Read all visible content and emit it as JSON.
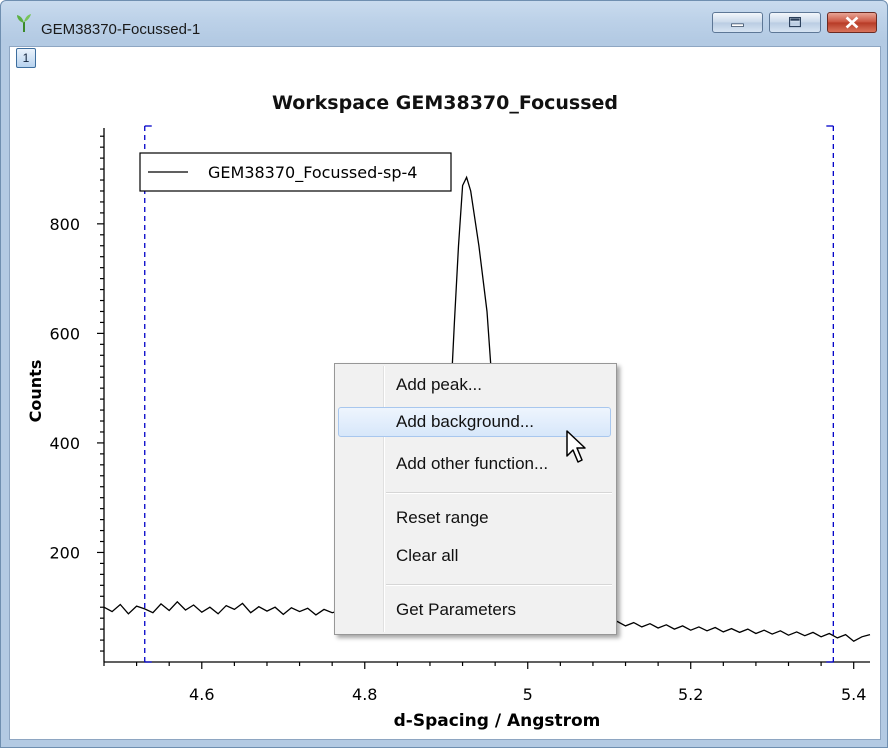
{
  "window": {
    "title": "GEM38370-Focussed-1",
    "layer_badge": "1"
  },
  "chart_title": "Workspace GEM38370_Focussed",
  "colors": {
    "range_marker": "#0000c8",
    "curve": "#000000",
    "title_bar": "#bcd1e8",
    "close_button": "#c9503c"
  },
  "context_menu": {
    "items": [
      {
        "label": "Add peak..."
      },
      {
        "label": "Add background..."
      },
      {
        "label": "Add other function..."
      },
      {
        "label": "Reset range"
      },
      {
        "label": "Clear all"
      },
      {
        "label": "Get Parameters"
      }
    ],
    "hovered": "Add background..."
  },
  "chart_data": {
    "type": "line",
    "title": "Workspace GEM38370_Focussed",
    "xlabel": "d-Spacing / Angstrom",
    "ylabel": "Counts",
    "xlim": [
      4.48,
      5.42
    ],
    "ylim": [
      0,
      975
    ],
    "x_ticks": [
      "4.6",
      "4.8",
      "5",
      "5.2",
      "5.4"
    ],
    "y_ticks": [
      "200",
      "400",
      "600",
      "800"
    ],
    "x_tick_values": [
      4.6,
      4.8,
      5.0,
      5.2,
      5.4
    ],
    "y_tick_values": [
      200,
      400,
      600,
      800
    ],
    "legend": {
      "entries": [
        "GEM38370_Focussed-sp-4"
      ],
      "placement": "top-left"
    },
    "grid": false,
    "range_markers": [
      4.53,
      5.375
    ],
    "series": [
      {
        "name": "GEM38370_Focussed-sp-4",
        "points": [
          [
            4.48,
            100
          ],
          [
            4.49,
            92
          ],
          [
            4.5,
            105
          ],
          [
            4.51,
            88
          ],
          [
            4.52,
            102
          ],
          [
            4.53,
            97
          ],
          [
            4.54,
            90
          ],
          [
            4.55,
            106
          ],
          [
            4.56,
            94
          ],
          [
            4.57,
            110
          ],
          [
            4.58,
            95
          ],
          [
            4.59,
            104
          ],
          [
            4.6,
            91
          ],
          [
            4.61,
            100
          ],
          [
            4.62,
            88
          ],
          [
            4.63,
            103
          ],
          [
            4.64,
            96
          ],
          [
            4.65,
            107
          ],
          [
            4.66,
            90
          ],
          [
            4.67,
            101
          ],
          [
            4.68,
            93
          ],
          [
            4.69,
            100
          ],
          [
            4.7,
            87
          ],
          [
            4.71,
            99
          ],
          [
            4.72,
            92
          ],
          [
            4.73,
            98
          ],
          [
            4.74,
            86
          ],
          [
            4.75,
            96
          ],
          [
            4.76,
            90
          ],
          [
            4.77,
            94
          ],
          [
            4.78,
            85
          ],
          [
            4.79,
            93
          ],
          [
            4.8,
            88
          ],
          [
            4.81,
            95
          ],
          [
            4.82,
            86
          ],
          [
            4.83,
            92
          ],
          [
            4.84,
            84
          ],
          [
            4.85,
            91
          ],
          [
            4.86,
            87
          ],
          [
            4.87,
            96
          ],
          [
            4.88,
            110
          ],
          [
            4.89,
            160
          ],
          [
            4.9,
            320
          ],
          [
            4.91,
            620
          ],
          [
            4.915,
            760
          ],
          [
            4.92,
            870
          ],
          [
            4.925,
            885
          ],
          [
            4.93,
            860
          ],
          [
            4.94,
            760
          ],
          [
            4.95,
            640
          ],
          [
            4.96,
            430
          ],
          [
            4.97,
            250
          ],
          [
            4.98,
            140
          ],
          [
            4.99,
            100
          ],
          [
            5.0,
            84
          ],
          [
            5.01,
            80
          ],
          [
            5.02,
            78
          ],
          [
            5.03,
            82
          ],
          [
            5.04,
            75
          ],
          [
            5.05,
            80
          ],
          [
            5.06,
            72
          ],
          [
            5.07,
            78
          ],
          [
            5.08,
            70
          ],
          [
            5.09,
            76
          ],
          [
            5.1,
            69
          ],
          [
            5.11,
            74
          ],
          [
            5.12,
            66
          ],
          [
            5.13,
            72
          ],
          [
            5.14,
            64
          ],
          [
            5.15,
            70
          ],
          [
            5.16,
            62
          ],
          [
            5.17,
            68
          ],
          [
            5.18,
            60
          ],
          [
            5.19,
            66
          ],
          [
            5.2,
            58
          ],
          [
            5.21,
            64
          ],
          [
            5.22,
            57
          ],
          [
            5.23,
            63
          ],
          [
            5.24,
            55
          ],
          [
            5.25,
            61
          ],
          [
            5.26,
            54
          ],
          [
            5.27,
            60
          ],
          [
            5.28,
            52
          ],
          [
            5.29,
            58
          ],
          [
            5.3,
            51
          ],
          [
            5.31,
            57
          ],
          [
            5.32,
            49
          ],
          [
            5.33,
            55
          ],
          [
            5.34,
            48
          ],
          [
            5.35,
            54
          ],
          [
            5.36,
            46
          ],
          [
            5.37,
            52
          ],
          [
            5.38,
            44
          ],
          [
            5.39,
            50
          ],
          [
            5.4,
            38
          ],
          [
            5.41,
            46
          ],
          [
            5.42,
            50
          ]
        ]
      }
    ]
  }
}
